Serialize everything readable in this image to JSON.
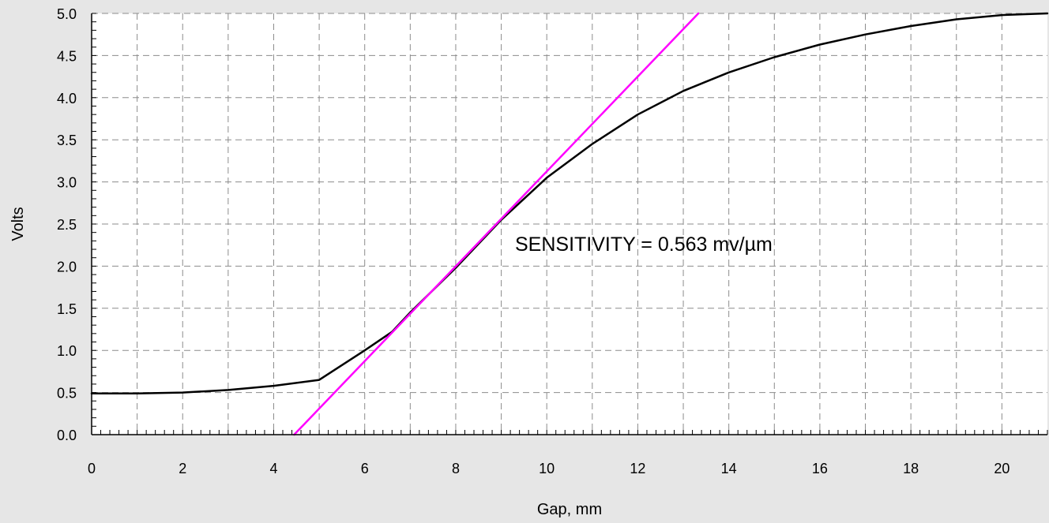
{
  "chart_data": {
    "type": "line",
    "title": "",
    "xlabel": "Gap, mm",
    "ylabel": "Volts",
    "xlim": [
      0,
      21
    ],
    "ylim": [
      0,
      5
    ],
    "x_ticks": [
      "0",
      "2",
      "4",
      "6",
      "8",
      "10",
      "12",
      "14",
      "16",
      "18",
      "20"
    ],
    "y_ticks": [
      "0.0",
      "0.5",
      "1.0",
      "1.5",
      "2.0",
      "2.5",
      "3.0",
      "3.5",
      "4.0",
      "4.5",
      "5.0"
    ],
    "grid": true,
    "annotation": "SENSITIVITY = 0.563 mv/µm",
    "series": [
      {
        "color": "#000000",
        "x": [
          0,
          1,
          2,
          3,
          4,
          5,
          6,
          6.6,
          7,
          8,
          9,
          10,
          11,
          12,
          13,
          14,
          15,
          16,
          17,
          18,
          19,
          20,
          21
        ],
        "y": [
          0.49,
          0.49,
          0.5,
          0.53,
          0.58,
          0.65,
          1.0,
          1.22,
          1.45,
          1.98,
          2.55,
          3.05,
          3.45,
          3.8,
          4.08,
          4.3,
          4.48,
          4.63,
          4.75,
          4.85,
          4.93,
          4.98,
          5.0
        ]
      },
      {
        "color": "#ff00ff",
        "x": [
          4.45,
          13.33
        ],
        "y": [
          0.0,
          5.0
        ]
      }
    ]
  }
}
